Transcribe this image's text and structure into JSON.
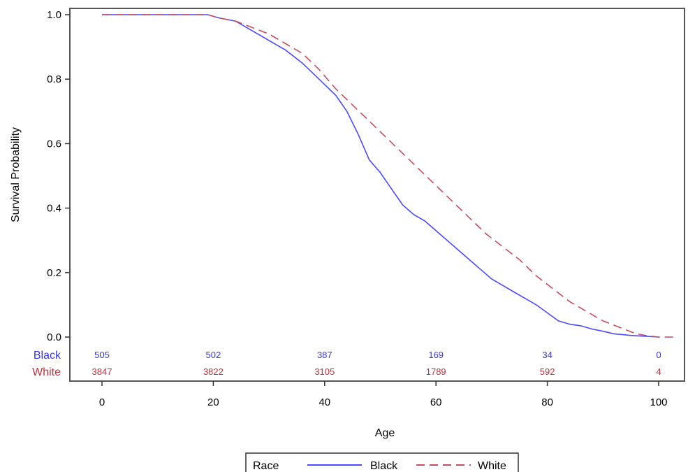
{
  "chart_data": {
    "type": "line",
    "title": "",
    "xlabel": "Age",
    "ylabel": "Survival Probability",
    "xlim": [
      -5,
      103
    ],
    "ylim": [
      0,
      1.0
    ],
    "x_ticks": [
      0,
      20,
      40,
      60,
      80,
      100
    ],
    "y_ticks": [
      "0.0",
      "0.2",
      "0.4",
      "0.6",
      "0.8",
      "1.0"
    ],
    "grid": false,
    "legend": {
      "placement": "bottom",
      "title": "Race",
      "entries": [
        "Black",
        "White"
      ]
    },
    "series": [
      {
        "name": "Black",
        "color": "#4a4aff",
        "dash": "solid",
        "x": [
          0,
          19,
          21,
          24,
          27,
          30,
          33,
          36,
          39,
          42,
          44,
          46,
          48,
          50,
          52,
          54,
          56,
          58,
          60,
          62,
          64,
          66,
          68,
          70,
          72,
          74,
          76,
          78,
          80,
          82,
          84,
          86,
          88,
          90,
          92,
          95,
          98,
          100
        ],
        "y": [
          1.0,
          1.0,
          0.99,
          0.98,
          0.95,
          0.92,
          0.89,
          0.85,
          0.8,
          0.75,
          0.7,
          0.63,
          0.55,
          0.51,
          0.46,
          0.41,
          0.38,
          0.36,
          0.33,
          0.3,
          0.27,
          0.24,
          0.21,
          0.18,
          0.16,
          0.14,
          0.12,
          0.1,
          0.075,
          0.05,
          0.04,
          0.035,
          0.025,
          0.018,
          0.01,
          0.005,
          0.002,
          0.0
        ]
      },
      {
        "name": "White",
        "color": "#c44e5e",
        "dash": "dashed",
        "x": [
          0,
          19,
          21,
          24,
          27,
          30,
          33,
          36,
          39,
          42,
          45,
          48,
          51,
          54,
          57,
          60,
          63,
          66,
          69,
          72,
          75,
          78,
          81,
          84,
          87,
          90,
          93,
          96,
          98,
          100,
          103
        ],
        "y": [
          1.0,
          1.0,
          0.99,
          0.98,
          0.96,
          0.94,
          0.91,
          0.88,
          0.83,
          0.77,
          0.72,
          0.67,
          0.62,
          0.57,
          0.52,
          0.47,
          0.42,
          0.37,
          0.32,
          0.28,
          0.24,
          0.19,
          0.15,
          0.11,
          0.08,
          0.05,
          0.03,
          0.01,
          0.004,
          0.0,
          0.0
        ]
      }
    ],
    "at_risk": {
      "x": [
        0,
        20,
        40,
        60,
        80,
        100
      ],
      "rows": [
        {
          "label": "Black",
          "color": "#3838e8",
          "values": [
            "505",
            "502",
            "387",
            "169",
            "34",
            "0"
          ]
        },
        {
          "label": "White",
          "color": "#c0303a",
          "values": [
            "3847",
            "3822",
            "3105",
            "1789",
            "592",
            "4"
          ]
        }
      ]
    }
  }
}
